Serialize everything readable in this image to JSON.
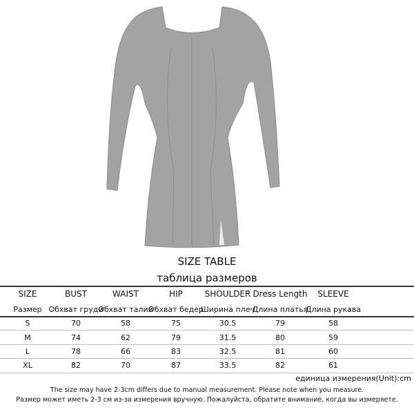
{
  "product_image": {
    "description_color": "#a3a3a3"
  },
  "title": "SIZE TABLE",
  "subtitle": "таблица размеров",
  "table": {
    "headers_en": [
      "SIZE",
      "BUST",
      "WAIST",
      "HIP",
      "SHOULDER",
      "Dress  Length",
      "SLEEVE"
    ],
    "headers_ru": [
      "Размер",
      "Обхват груди",
      "Обхват талии",
      "Обхват бедер",
      "Ширина плеч",
      "Длина  платья",
      "Длина рукава"
    ],
    "rows": [
      [
        "S",
        "70",
        "58",
        "75",
        "30.5",
        "79",
        "58"
      ],
      [
        "M",
        "74",
        "62",
        "79",
        "31.5",
        "80",
        "59"
      ],
      [
        "L",
        "78",
        "66",
        "83",
        "32.5",
        "81",
        "60"
      ],
      [
        "XL",
        "82",
        "70",
        "87",
        "33.5",
        "82",
        "61"
      ]
    ]
  },
  "unit": "единица измерения(Unit):cm",
  "note_en": "The size may have 2-3cm differs due to manual measurement. Please note when you measure.",
  "note_ru": "Размер может иметь 2-3 см из-за измерения вручную. Пожалуйста, обратите внимание, когда вы измеряете."
}
